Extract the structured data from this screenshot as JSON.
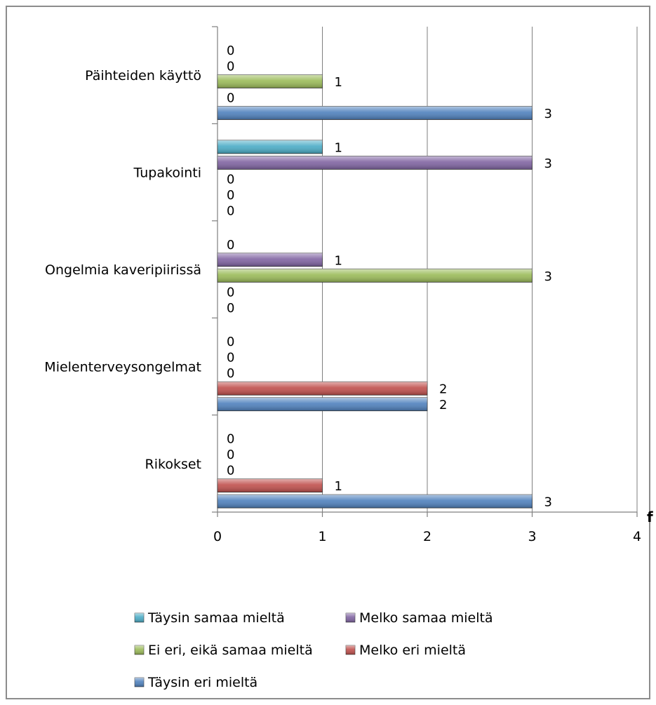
{
  "chart_data": {
    "type": "bar",
    "orientation": "horizontal",
    "categories": [
      "Rikokset",
      "Mielenterveysongelmat",
      "Ongelmia kaveripiirissä",
      "Tupakointi",
      "Päihteiden käyttö"
    ],
    "series": [
      {
        "name": "Täysin eri mieltä",
        "color": "#4f81bd",
        "values": [
          3,
          2,
          0,
          0,
          3
        ]
      },
      {
        "name": "Melko eri mieltä",
        "color": "#c0504d",
        "values": [
          1,
          2,
          0,
          0,
          0
        ]
      },
      {
        "name": "Ei eri, eikä samaa mieltä",
        "color": "#9bbb59",
        "values": [
          0,
          0,
          3,
          0,
          1
        ]
      },
      {
        "name": "Melko samaa mieltä",
        "color": "#8064a2",
        "values": [
          0,
          0,
          1,
          3,
          0
        ]
      },
      {
        "name": "Täysin samaa mieltä",
        "color": "#4bacc6",
        "values": [
          0,
          0,
          0,
          1,
          0
        ]
      }
    ],
    "xlabel": "f",
    "xlim": [
      0,
      4
    ],
    "xticks": [
      "0",
      "1",
      "2",
      "3",
      "4"
    ],
    "grid": "vertical",
    "legend": {
      "position": "bottom",
      "rows": [
        [
          "Täysin samaa mieltä",
          "Melko samaa mieltä"
        ],
        [
          "Ei eri, eikä samaa mieltä",
          "Melko eri mieltä"
        ],
        [
          "Täysin eri mieltä"
        ]
      ]
    }
  }
}
